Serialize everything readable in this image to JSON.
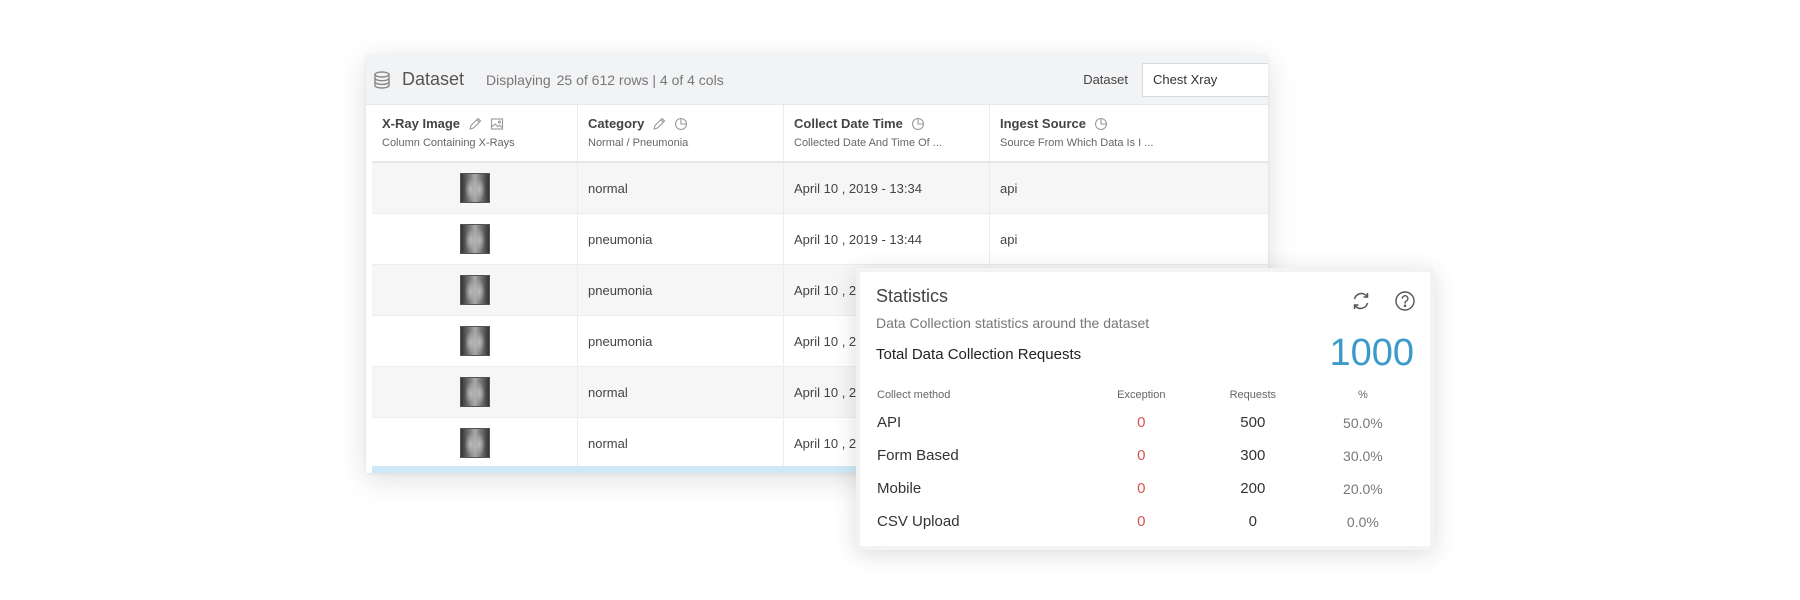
{
  "dataset": {
    "title": "Dataset",
    "displaying_label": "Displaying",
    "displaying_value": "25 of 612 rows | 4 of 4 cols",
    "selector_label": "Dataset",
    "selector_value": "Chest Xray",
    "columns": [
      {
        "name": "X-Ray Image",
        "desc": "Column Containing X-Rays",
        "icons": [
          "pencil-icon",
          "image-icon"
        ]
      },
      {
        "name": "Category",
        "desc": "Normal / Pneumonia",
        "icons": [
          "pencil-icon",
          "pie-chart-icon"
        ]
      },
      {
        "name": "Collect Date Time",
        "desc": "Collected Date And Time Of ...",
        "icons": [
          "pie-chart-icon"
        ]
      },
      {
        "name": "Ingest Source",
        "desc": "Source From Which Data Is I ...",
        "icons": [
          "pie-chart-icon"
        ]
      }
    ],
    "rows": [
      {
        "category": "normal",
        "date": "April 10 , 2019 - 13:34",
        "source": "api"
      },
      {
        "category": "pneumonia",
        "date": "April 10 , 2019 - 13:44",
        "source": "api"
      },
      {
        "category": "pneumonia",
        "date": "April 10 , 2",
        "source": ""
      },
      {
        "category": "pneumonia",
        "date": "April 10 , 2",
        "source": ""
      },
      {
        "category": "normal",
        "date": "April 10 , 2",
        "source": ""
      },
      {
        "category": "normal",
        "date": "April 10 , 2",
        "source": ""
      }
    ]
  },
  "statistics": {
    "title": "Statistics",
    "subtitle": "Data Collection statistics around the dataset",
    "total_label": "Total Data Collection Requests",
    "total_value": "1000",
    "headers": [
      "Collect method",
      "Exception",
      "Requests",
      "%"
    ],
    "rows": [
      {
        "method": "API",
        "exception": "0",
        "requests": "500",
        "percent": "50.0%"
      },
      {
        "method": "Form Based",
        "exception": "0",
        "requests": "300",
        "percent": "30.0%"
      },
      {
        "method": "Mobile",
        "exception": "0",
        "requests": "200",
        "percent": "20.0%"
      },
      {
        "method": "CSV Upload",
        "exception": "0",
        "requests": "0",
        "percent": "0.0%"
      }
    ],
    "colors": {
      "total": "#3b9ac9",
      "exception": "#d9534f"
    }
  }
}
